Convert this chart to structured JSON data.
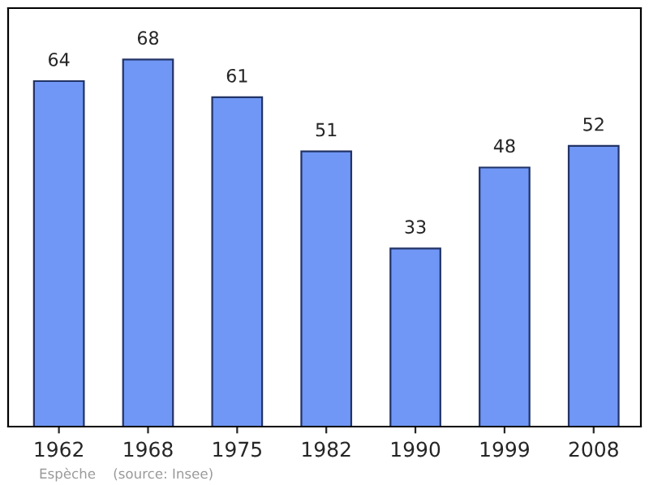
{
  "chart_data": {
    "type": "bar",
    "categories": [
      "1962",
      "1968",
      "1975",
      "1982",
      "1990",
      "1999",
      "2008"
    ],
    "values": [
      64,
      68,
      61,
      51,
      33,
      48,
      52
    ],
    "color": "#7097f5",
    "data_labels": true,
    "grid": false,
    "legend": false,
    "tick_labels": "x",
    "annotations": [
      "Espèche    (source: Insee)"
    ]
  }
}
